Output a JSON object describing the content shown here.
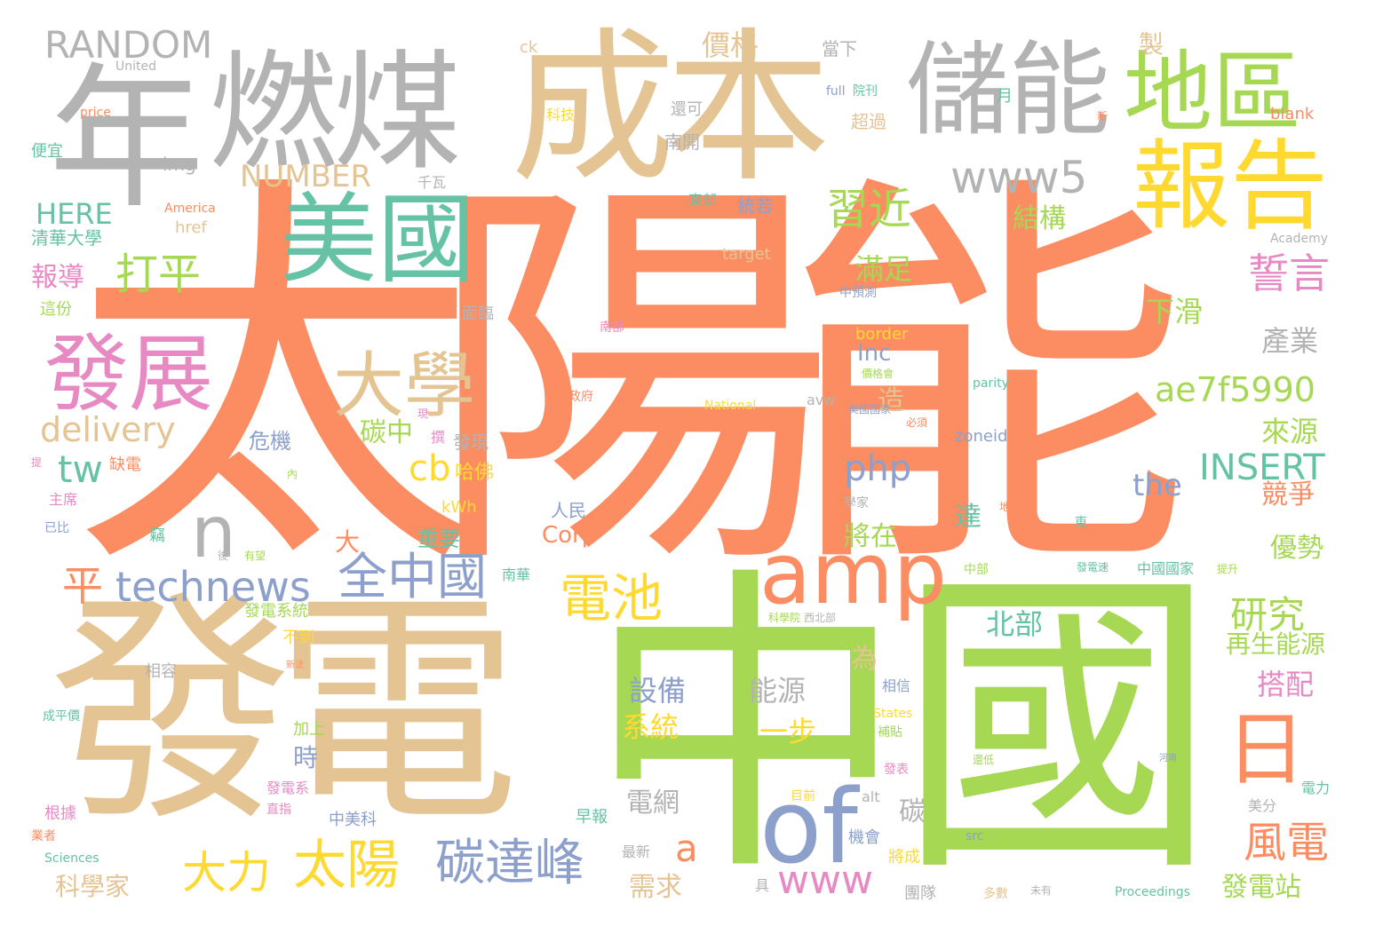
{
  "title": "word cloud",
  "colors": {
    "orange": "#fc8d62",
    "tan": "#e5c494",
    "green": "#a6d854",
    "teal": "#66c2a5",
    "blue": "#8da0cb",
    "pink": "#e78ac3",
    "yellow": "#ffd92f",
    "gray": "#b3b3b3"
  },
  "words": {
    "taiyangneng": "太陽能",
    "zhongguo": "中國",
    "fadian": "發電",
    "chengben": "成本",
    "nian": "年",
    "ranmei": "燃煤",
    "chuneng": "儲能",
    "diqu": "地區",
    "baogao": "報告",
    "meiguo": "美國",
    "fazhan": "發展",
    "daxue": "大學",
    "amp": "amp",
    "of": "of",
    "ri": "日",
    "random": "RANDOM",
    "www5": "www5",
    "xijin": "習近",
    "daping": "打平",
    "n": "n",
    "ping": "平",
    "technews": "technews",
    "quanzhongguo": "全中國",
    "tanda": "碳達峰",
    "taiyang": "太陽",
    "dali": "大力",
    "dianchi": "電池",
    "fengdian": "風電",
    "yanjiu": "研究",
    "shiyan": "誓言",
    "delivery": "delivery",
    "tw": "tw",
    "cb": "cb",
    "php": "php",
    "insert": "INSERT",
    "ae7f": "ae7f5990",
    "number": "NUMBER",
    "here": "HERE",
    "www": "www",
    "a": "a",
    "the": "the",
    "jiage": "價格",
    "zhi": "製",
    "jiegou": "結構",
    "manzu": "滿足",
    "xiahua": "下滑",
    "chanye": "產業",
    "laiyuan": "來源",
    "jingzheng": "競爭",
    "youshi": "優勢",
    "zaishengnengyuan": "再生能源",
    "dapei": "搭配",
    "fadianzhan": "發電站",
    "beibu": "北部",
    "shebei": "設備",
    "nengyuan": "能源",
    "yibu": "一步",
    "xitong": "系統",
    "dianwang": "電網",
    "xuqiu": "需求",
    "kexuejia": "科學家",
    "baodao": "報導",
    "tanzhong": "碳中",
    "jiangzai": "將在",
    "da_small": "達",
    "zao": "造",
    "inc": "Inc",
    "wei": "為",
    "shi": "時",
    "tan": "碳",
    "corp": "Corp",
    "da": "大",
    "zhongyao": "重要",
    "weiji": "危機",
    "hafo": "哈佛",
    "faxian": "發現",
    "renmin": "人民",
    "kwh": "kWh",
    "qinghua": "清華大學",
    "bianyi": "便宜",
    "img": "img",
    "href": "href",
    "keji": "科技",
    "dangxia": "當下",
    "haike": "還可",
    "chaoguo": "超過",
    "nankai": "南開",
    "dongbu": "東部",
    "tongruo": "統若",
    "target": "target",
    "qianwa": "千瓦",
    "america": "America",
    "united": "United",
    "price": "price",
    "ck": "ck",
    "blank": "blank",
    "full": "full",
    "yuankan": "院刊",
    "yue": "月",
    "academy": "Academy",
    "border": "border",
    "parity": "parity",
    "zoneid": "zoneid",
    "national": "National",
    "avw": "avw",
    "proceedings": "Proceedings",
    "sciences": "Sciences",
    "states": "States",
    "src": "src",
    "alt": "alt",
    "zheng": "這份",
    "mianlin": "面臨",
    "queshi": "缺電",
    "zhuxi": "主席",
    "yibi": "已比",
    "nanhua": "南華",
    "fadianxitong": "發電系統",
    "budao": "不到",
    "xiangrong": "相容",
    "jiashang": "加上",
    "genju": "根據",
    "fadianxi": "發電系",
    "zhongmeike": "中美科",
    "zaobao": "早報",
    "zuixin": "最新",
    "tuandui": "團隊",
    "jihui": "機會",
    "jiangcheng": "將成",
    "meifen": "美分",
    "dianli": "電力",
    "xiangxin": "相信",
    "buzhu": "補貼",
    "zhongguoguojia": "中國國家",
    "tisheng": "提升",
    "chengpingjia": "成平價",
    "zhengfu": "政府",
    "nanbu": "南部",
    "zhongyuce": "中預測",
    "jiagehui": "價格會",
    "meiguoguojia": "美國國家",
    "bixu": "必須",
    "xuejia": "學家",
    "difang": "地方",
    "kexueyuan": "科學院",
    "xibeibu": "西北部",
    "zhongbu": "中部",
    "fadianlu": "發電速",
    "zhongfen": "中",
    "duoshu": "多數",
    "weiyou": "未有",
    "jiangdi": "還低",
    "henan": "河南",
    "fabiao": "發表",
    "mubiao": "目前",
    "yeji": "業者",
    "lizhi": "直指",
    "youwang": "有望",
    "sheng": "竊",
    "hou": "後",
    "ju": "具",
    "xinqi": "新法",
    "nei": "內",
    "huan": "現",
    "xun": "撰",
    "ti": "提",
    "xianzhe": "新",
    "dong": "東"
  }
}
